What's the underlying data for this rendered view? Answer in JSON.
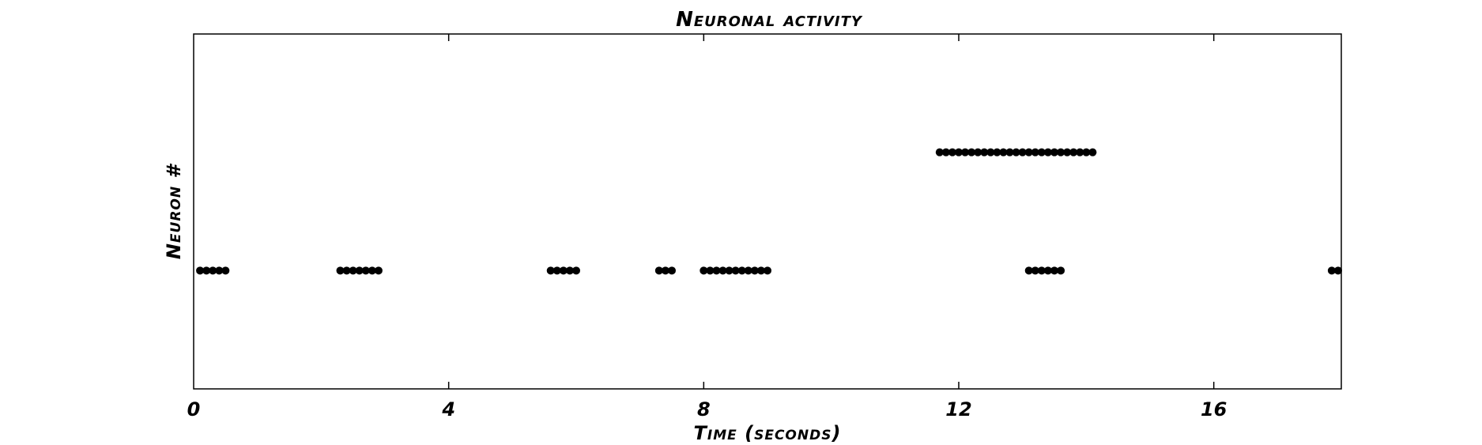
{
  "chart_data": {
    "type": "scatter",
    "title": "Neuronal activity",
    "xlabel": "Time (seconds)",
    "ylabel": "Neuron #",
    "xlim": [
      0,
      18
    ],
    "ylim": [
      0,
      3
    ],
    "grid": false,
    "legend": "none",
    "x_ticks": [
      0,
      4,
      8,
      12,
      16
    ],
    "x_tick_labels": [
      "0",
      "4",
      "8",
      "12",
      "16"
    ],
    "marker_color": "#000000",
    "series": [
      {
        "values": [
          {
            "x": 0.1,
            "y": 1
          },
          {
            "x": 0.2,
            "y": 1
          },
          {
            "x": 0.3,
            "y": 1
          },
          {
            "x": 0.4,
            "y": 1
          },
          {
            "x": 0.5,
            "y": 1
          },
          {
            "x": 2.3,
            "y": 1
          },
          {
            "x": 2.4,
            "y": 1
          },
          {
            "x": 2.5,
            "y": 1
          },
          {
            "x": 2.6,
            "y": 1
          },
          {
            "x": 2.7,
            "y": 1
          },
          {
            "x": 2.8,
            "y": 1
          },
          {
            "x": 2.9,
            "y": 1
          },
          {
            "x": 5.6,
            "y": 1
          },
          {
            "x": 5.7,
            "y": 1
          },
          {
            "x": 5.8,
            "y": 1
          },
          {
            "x": 5.9,
            "y": 1
          },
          {
            "x": 6.0,
            "y": 1
          },
          {
            "x": 7.3,
            "y": 1
          },
          {
            "x": 7.4,
            "y": 1
          },
          {
            "x": 7.5,
            "y": 1
          },
          {
            "x": 8.0,
            "y": 1
          },
          {
            "x": 8.1,
            "y": 1
          },
          {
            "x": 8.2,
            "y": 1
          },
          {
            "x": 8.3,
            "y": 1
          },
          {
            "x": 8.4,
            "y": 1
          },
          {
            "x": 8.5,
            "y": 1
          },
          {
            "x": 8.6,
            "y": 1
          },
          {
            "x": 8.7,
            "y": 1
          },
          {
            "x": 8.8,
            "y": 1
          },
          {
            "x": 8.9,
            "y": 1
          },
          {
            "x": 9.0,
            "y": 1
          },
          {
            "x": 13.1,
            "y": 1
          },
          {
            "x": 13.2,
            "y": 1
          },
          {
            "x": 13.3,
            "y": 1
          },
          {
            "x": 13.4,
            "y": 1
          },
          {
            "x": 13.5,
            "y": 1
          },
          {
            "x": 13.6,
            "y": 1
          },
          {
            "x": 17.85,
            "y": 1
          },
          {
            "x": 17.95,
            "y": 1
          },
          {
            "x": 11.7,
            "y": 2
          },
          {
            "x": 11.8,
            "y": 2
          },
          {
            "x": 11.9,
            "y": 2
          },
          {
            "x": 12.0,
            "y": 2
          },
          {
            "x": 12.1,
            "y": 2
          },
          {
            "x": 12.2,
            "y": 2
          },
          {
            "x": 12.3,
            "y": 2
          },
          {
            "x": 12.4,
            "y": 2
          },
          {
            "x": 12.5,
            "y": 2
          },
          {
            "x": 12.6,
            "y": 2
          },
          {
            "x": 12.7,
            "y": 2
          },
          {
            "x": 12.8,
            "y": 2
          },
          {
            "x": 12.9,
            "y": 2
          },
          {
            "x": 13.0,
            "y": 2
          },
          {
            "x": 13.1,
            "y": 2
          },
          {
            "x": 13.2,
            "y": 2
          },
          {
            "x": 13.3,
            "y": 2
          },
          {
            "x": 13.4,
            "y": 2
          },
          {
            "x": 13.5,
            "y": 2
          },
          {
            "x": 13.6,
            "y": 2
          },
          {
            "x": 13.7,
            "y": 2
          },
          {
            "x": 13.8,
            "y": 2
          },
          {
            "x": 13.9,
            "y": 2
          },
          {
            "x": 14.0,
            "y": 2
          },
          {
            "x": 14.1,
            "y": 2
          }
        ]
      }
    ]
  }
}
